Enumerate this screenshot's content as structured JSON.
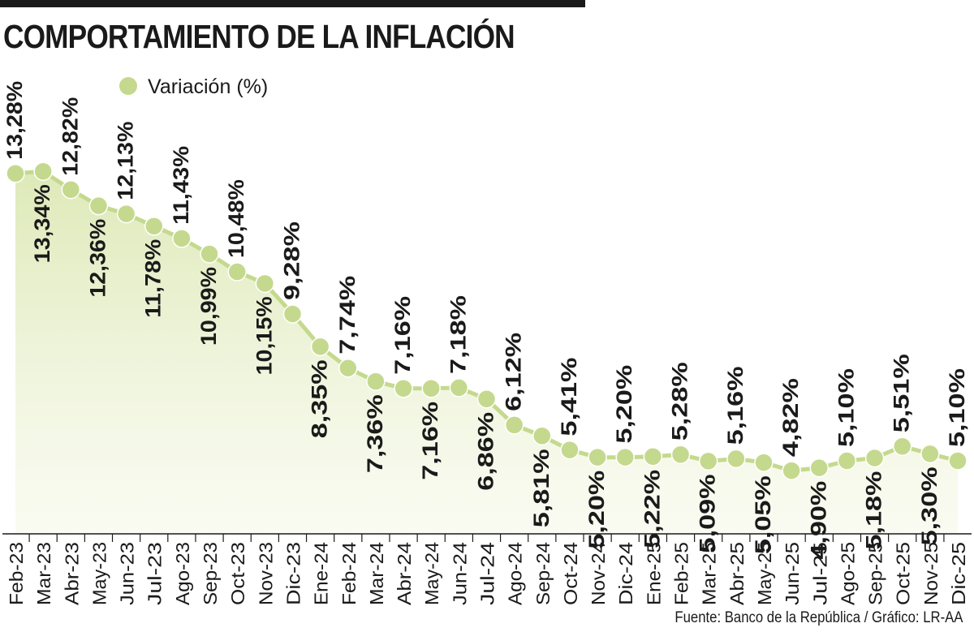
{
  "chart_data": {
    "type": "line",
    "title": "COMPORTAMIENTO DE LA INFLACIÓN",
    "categories": [
      "Feb-23",
      "Mar-23",
      "Abr-23",
      "May-23",
      "Jun-23",
      "Jul-23",
      "Ago-23",
      "Sep-23",
      "Oct-23",
      "Nov-23",
      "Dic-23",
      "Ene-24",
      "Feb-24",
      "Mar-24",
      "Abr-24",
      "May-24",
      "Jun-24",
      "Jul-24",
      "Ago-24",
      "Sep-24",
      "Oct-24",
      "Nov-24",
      "Dic-24",
      "Ene-25",
      "Feb-25",
      "Mar-25",
      "Abr-25",
      "May-25",
      "Jun-25",
      "Jul-25",
      "Ago-25",
      "Sep-25",
      "Oct-25",
      "Nov-25",
      "Dic-25"
    ],
    "series": [
      {
        "name": "Variación (%)",
        "color": "#c5d98e",
        "values": [
          13.28,
          13.34,
          12.82,
          12.36,
          12.13,
          11.78,
          11.43,
          10.99,
          10.48,
          10.15,
          9.28,
          8.35,
          7.74,
          7.36,
          7.16,
          7.16,
          7.18,
          6.86,
          6.12,
          5.81,
          5.41,
          5.2,
          5.2,
          5.22,
          5.28,
          5.09,
          5.16,
          5.05,
          4.82,
          4.9,
          5.1,
          5.18,
          5.51,
          5.3,
          5.1
        ],
        "labels": [
          "13,28%",
          "13,34%",
          "12,82%",
          "12,36%",
          "12,13%",
          "11,78%",
          "11,43%",
          "10,99%",
          "10,48%",
          "10,15%",
          "9,28%",
          "8,35%",
          "7,74%",
          "7,36%",
          "7,16%",
          "7,16%",
          "7,18%",
          "6,86%",
          "6,12%",
          "5,81%",
          "5,41%",
          "5,20%",
          "5,20%",
          "5,22%",
          "5,28%",
          "5,09%",
          "5,16%",
          "5,05%",
          "4,82%",
          "4,90%",
          "5,10%",
          "5,18%",
          "5,51%",
          "5,30%",
          "5,10%"
        ]
      }
    ],
    "label_placement": [
      "above",
      "below",
      "above",
      "below",
      "above",
      "below",
      "above",
      "below",
      "above",
      "below",
      "above",
      "below",
      "above",
      "below",
      "above",
      "below",
      "above",
      "below",
      "above",
      "below",
      "above",
      "below",
      "above",
      "below",
      "above",
      "below",
      "above",
      "below",
      "above",
      "below",
      "above",
      "below",
      "above",
      "below",
      "above"
    ],
    "xlabel": "",
    "ylabel": "",
    "grid": false,
    "legend": "top-left",
    "fill": "gradient",
    "source": "Fuente: Banco de la República / Gráfico: LR-AA"
  }
}
